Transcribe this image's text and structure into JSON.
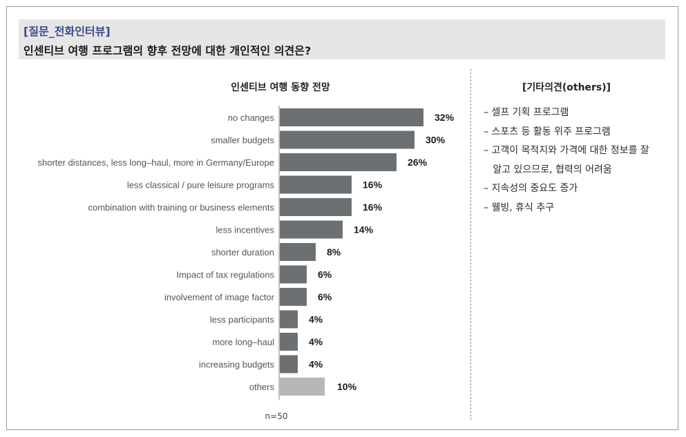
{
  "header": {
    "tag": "[질문_전화인터뷰]",
    "question": "인센티브 여행 프로그램의 향후 전망에 대한 개인적인 의견은?"
  },
  "others_panel": {
    "title": "[기타의견(others)]",
    "items": [
      "– 셀프 기획 프로그램",
      "– 스포츠 등 활동 위주 프로그램",
      "– 고객이 목적지와 가격에 대한 정보를 잘",
      "   알고 있으므로, 협력의 어려움",
      "– 지속성의 중요도 증가",
      "– 웰빙, 휴식 추구"
    ]
  },
  "colors": {
    "bar": "#6d7073",
    "bar_others": "#b5b7b9",
    "header_bg": "#e6e6e6",
    "tag_text": "#3b4a8c"
  },
  "chart_data": {
    "type": "bar",
    "orientation": "horizontal",
    "title": "인센티브 여행 동향 전망",
    "note": "n=50",
    "categories": [
      "no changes",
      "smaller budgets",
      "shorter distances, less long–haul, more in Germany/Europe",
      "less classical / pure leisure programs",
      "combination with training or business elements",
      "less incentives",
      "shorter duration",
      "Impact of tax regulations",
      "involvement of image factor",
      "less participants",
      "more long–haul",
      "increasing budgets",
      "others"
    ],
    "values": [
      32,
      30,
      26,
      16,
      16,
      14,
      8,
      6,
      6,
      4,
      4,
      4,
      10
    ],
    "value_labels": [
      "32%",
      "30%",
      "26%",
      "16%",
      "16%",
      "14%",
      "8%",
      "6%",
      "6%",
      "4%",
      "4%",
      "4%",
      "10%"
    ],
    "unit": "%",
    "xlim": [
      0,
      32
    ],
    "highlight_category": "others",
    "grid": false,
    "legend": "none"
  }
}
